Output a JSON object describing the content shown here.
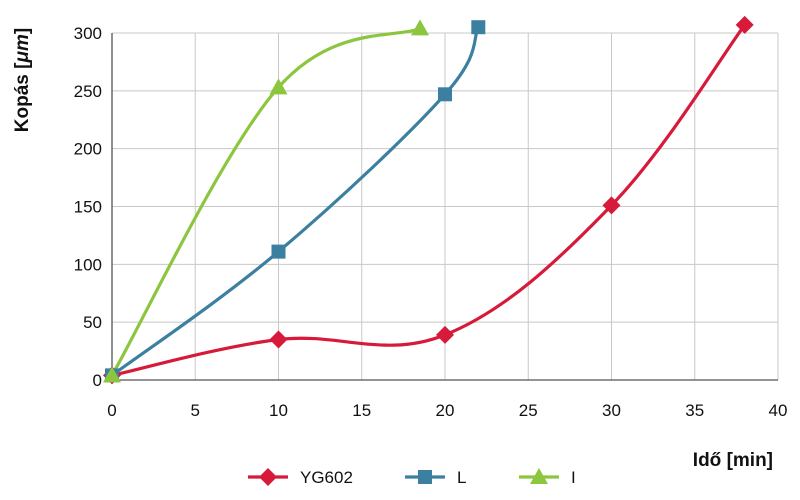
{
  "chart_data": {
    "type": "line",
    "title": "",
    "xlabel": "Idő [min]",
    "ylabel_main": "Kopás [",
    "ylabel_unit": "μm",
    "ylabel_end": "]",
    "xlim": [
      0,
      40
    ],
    "ylim": [
      0,
      300
    ],
    "x_ticks": [
      0,
      5,
      10,
      15,
      20,
      25,
      30,
      35,
      40
    ],
    "y_ticks": [
      0,
      50,
      100,
      150,
      200,
      250,
      300
    ],
    "grid": true,
    "legend_position": "bottom",
    "series": [
      {
        "name": "YG602",
        "color": "#d7193a",
        "marker": "diamond",
        "x": [
          0,
          10,
          20,
          30,
          38
        ],
        "y": [
          4,
          35,
          39,
          151,
          307
        ]
      },
      {
        "name": "L",
        "color": "#3b7fa1",
        "marker": "square",
        "x": [
          0,
          10,
          20,
          22
        ],
        "y": [
          4,
          111,
          247,
          305
        ]
      },
      {
        "name": "I",
        "color": "#8cc63f",
        "marker": "triangle",
        "x": [
          0,
          10,
          18.5
        ],
        "y": [
          4,
          253,
          304
        ]
      }
    ]
  }
}
